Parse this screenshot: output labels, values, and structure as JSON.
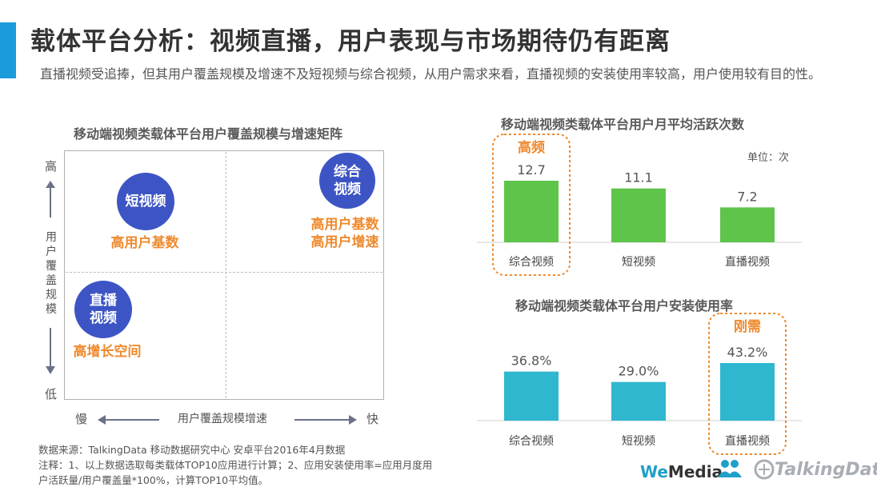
{
  "header": {
    "title": "载体平台分析：视频直播，用户表现与市场期待仍有距离",
    "subtitle": "直播视频受追捧，但其用户覆盖规模及增速不及短视频与综合视频，从用户需求来看，直播视频的安装使用率较高，用户使用较有目的性。"
  },
  "matrix": {
    "title": "移动端视频类载体平台用户覆盖规模与增速矩阵",
    "y_high": "高",
    "y_low": "低",
    "y_label": [
      "用",
      "户",
      "覆",
      "盖",
      "规",
      "模"
    ],
    "x_slow": "慢",
    "x_fast": "快",
    "x_label": "用户覆盖规模增速",
    "bubbles": [
      {
        "name_lines": [
          "短视频"
        ],
        "desc_lines": [
          "高用户基数"
        ]
      },
      {
        "name_lines": [
          "综合",
          "视频"
        ],
        "desc_lines": [
          "高用户基数",
          "高用户增速"
        ]
      },
      {
        "name_lines": [
          "直播",
          "视频"
        ],
        "desc_lines": [
          "高增长空间"
        ]
      }
    ]
  },
  "chart_data": [
    {
      "type": "bar",
      "title": "移动端视频类载体平台用户月平均活跃次数",
      "unit_label": "单位：次",
      "categories": [
        "综合视频",
        "短视频",
        "直播视频"
      ],
      "values": [
        12.7,
        11.1,
        7.2
      ],
      "value_labels": [
        "12.7",
        "11.1",
        "7.2"
      ],
      "highlight": {
        "index": 0,
        "label": "高频"
      },
      "color": "#5ec44a"
    },
    {
      "type": "bar",
      "title": "移动端视频类载体平台用户安装使用率",
      "categories": [
        "综合视频",
        "短视频",
        "直播视频"
      ],
      "values": [
        36.8,
        29.0,
        43.2
      ],
      "value_labels": [
        "36.8%",
        "29.0%",
        "43.2%"
      ],
      "highlight": {
        "index": 2,
        "label": "刚需"
      },
      "color": "#2fb7cf"
    }
  ],
  "footer": {
    "source": "数据来源：TalkingData 移动数据研究中心 安卓平台2016年4月数据",
    "note1": "注释：1、以上数据选取每类载体TOP10应用进行计算；2、应用安装使用率=应用月度用",
    "note2": "户活跃量/用户覆盖量*100%，计算TOP10平均值。"
  },
  "brands": {
    "we": "We",
    "media": "Media",
    "talkingdata": "TalkingData"
  },
  "colors": {
    "accent": "#1b9bdc",
    "bubble": "#3d55c4",
    "orange": "#ee8a2e",
    "green": "#5ec44a",
    "teal": "#2fb7cf"
  }
}
